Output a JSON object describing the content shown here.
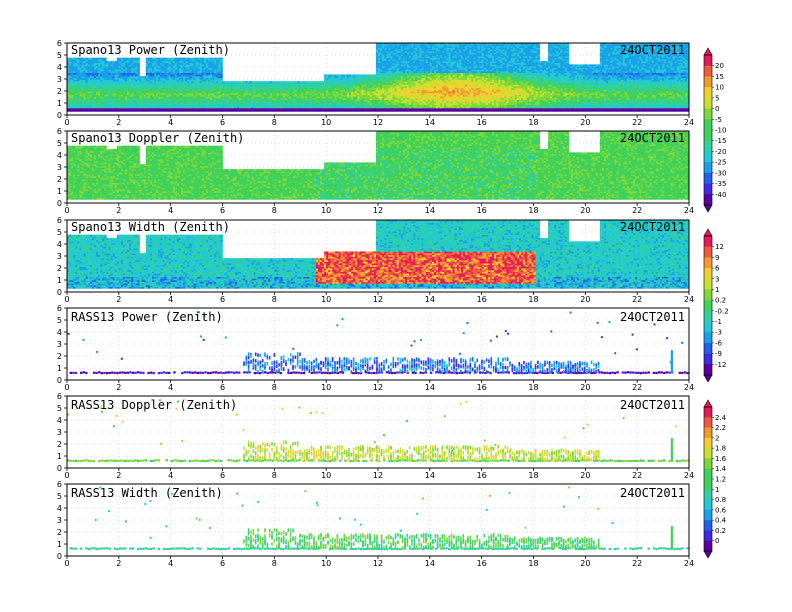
{
  "chart_data": [
    {
      "type": "heatmap",
      "title": "Spano13 Power (Zenith)",
      "date_label": "24OCT2011",
      "xlim": [
        0,
        24
      ],
      "ylim": [
        0,
        6
      ],
      "x_ticks": [
        "0",
        "2",
        "4",
        "6",
        "8",
        "10",
        "12",
        "14",
        "16",
        "18",
        "20",
        "22",
        "24"
      ],
      "y_ticks": [
        "0",
        "1",
        "2",
        "3",
        "4",
        "5",
        "6"
      ],
      "colorbar": "cb1",
      "mode": "power"
    },
    {
      "type": "heatmap",
      "title": "Spano13 Doppler (Zenith)",
      "date_label": "24OCT2011",
      "xlim": [
        0,
        24
      ],
      "ylim": [
        0,
        6
      ],
      "x_ticks": [
        "0",
        "2",
        "4",
        "6",
        "8",
        "10",
        "12",
        "14",
        "16",
        "18",
        "20",
        "22",
        "24"
      ],
      "y_ticks": [
        "0",
        "1",
        "2",
        "3",
        "4",
        "5",
        "6"
      ],
      "colorbar": "cb2",
      "mode": "doppler"
    },
    {
      "type": "heatmap",
      "title": "Spano13 Width (Zenith)",
      "date_label": "24OCT2011",
      "xlim": [
        0,
        24
      ],
      "ylim": [
        0,
        6
      ],
      "x_ticks": [
        "0",
        "2",
        "4",
        "6",
        "8",
        "10",
        "12",
        "14",
        "16",
        "18",
        "20",
        "22",
        "24"
      ],
      "y_ticks": [
        "0",
        "1",
        "2",
        "3",
        "4",
        "5",
        "6"
      ],
      "colorbar": "cb2",
      "mode": "width"
    },
    {
      "type": "scatter",
      "title": "RASS13 Power (Zenith)",
      "date_label": "24OCT2011",
      "xlim": [
        0,
        24
      ],
      "ylim": [
        0,
        6
      ],
      "x_ticks": [
        "0",
        "2",
        "4",
        "6",
        "8",
        "10",
        "12",
        "14",
        "16",
        "18",
        "20",
        "22",
        "24"
      ],
      "y_ticks": [
        "0",
        "1",
        "2",
        "3",
        "4",
        "5",
        "6"
      ],
      "colorbar": "cb3",
      "mode": "rpower"
    },
    {
      "type": "scatter",
      "title": "RASS13 Doppler (Zenith)",
      "date_label": "24OCT2011",
      "xlim": [
        0,
        24
      ],
      "ylim": [
        0,
        6
      ],
      "x_ticks": [
        "0",
        "2",
        "4",
        "6",
        "8",
        "10",
        "12",
        "14",
        "16",
        "18",
        "20",
        "22",
        "24"
      ],
      "y_ticks": [
        "0",
        "1",
        "2",
        "3",
        "4",
        "5",
        "6"
      ],
      "colorbar": "cb3",
      "mode": "rdoppler"
    },
    {
      "type": "scatter",
      "title": "RASS13 Width (Zenith)",
      "date_label": "24OCT2011",
      "xlim": [
        0,
        24
      ],
      "ylim": [
        0,
        6
      ],
      "x_ticks": [
        "0",
        "2",
        "4",
        "6",
        "8",
        "10",
        "12",
        "14",
        "16",
        "18",
        "20",
        "22",
        "24"
      ],
      "y_ticks": [
        "0",
        "1",
        "2",
        "3",
        "4",
        "5",
        "6"
      ],
      "colorbar": "cb3",
      "mode": "rwidth"
    }
  ],
  "colorbars": {
    "cb1": {
      "labels": [
        "20",
        "15",
        "10",
        "5",
        "0",
        "-5",
        "-10",
        "-15",
        "-20",
        "-25",
        "-30",
        "-35",
        "-40"
      ]
    },
    "cb2": {
      "labels": [
        "12",
        "9",
        "6",
        "3",
        "1",
        "0.2",
        "-0.2",
        "-1",
        "-3",
        "-6",
        "-9",
        "-12"
      ]
    },
    "cb3": {
      "labels": [
        "2.4",
        "2.2",
        "2",
        "1.8",
        "1.6",
        "1.4",
        "1.2",
        "1",
        "0.8",
        "0.6",
        "0.4",
        "0.2",
        "0"
      ]
    }
  },
  "palette": [
    "#5a00a0",
    "#3f2be0",
    "#2262f0",
    "#1aa0e8",
    "#20c8d8",
    "#30d0a0",
    "#3fd15a",
    "#80d838",
    "#c8e030",
    "#f0d030",
    "#f09a30",
    "#f05a40",
    "#e81a5a"
  ]
}
